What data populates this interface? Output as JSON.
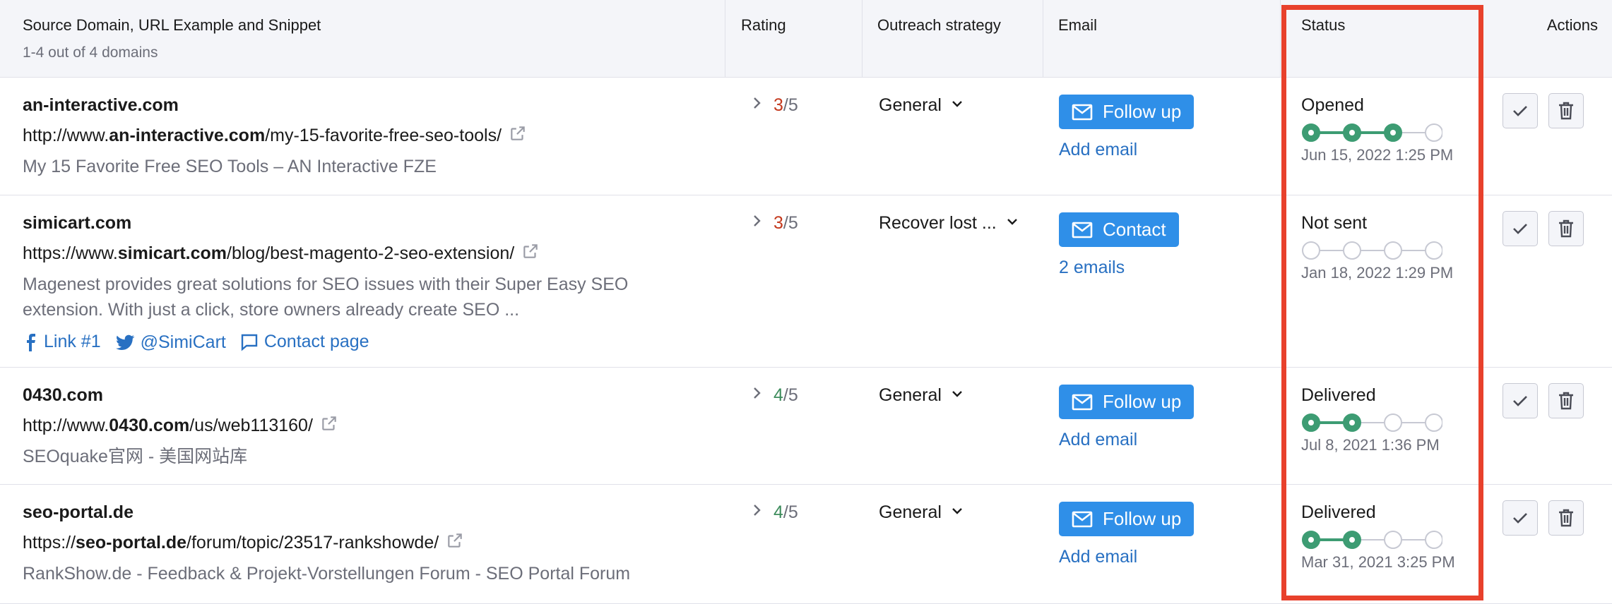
{
  "header": {
    "columns": [
      "Source Domain, URL Example and Snippet",
      "Rating",
      "Outreach strategy",
      "Email",
      "Status",
      "Actions"
    ],
    "subtitle": "1-4 out of 4 domains"
  },
  "rows": [
    {
      "domain": "an-interactive.com",
      "url_prefix": "http://www.",
      "url_domain": "an-interactive.com",
      "url_path": "/my-15-favorite-free-seo-tools/",
      "snippet": "My 15 Favorite Free SEO Tools – AN Interactive FZE",
      "rating": 3,
      "rating_max": 5,
      "rating_color": "#c4391d",
      "strategy": "General",
      "email_button": "Follow up",
      "email_link": "Add email",
      "status": "Opened",
      "progress": 3,
      "date": "Jun 15, 2022 1:25 PM"
    },
    {
      "domain": "simicart.com",
      "url_prefix": "https://www.",
      "url_domain": "simicart.com",
      "url_path": "/blog/best-magento-2-seo-extension/",
      "snippet": "Magenest provides great solutions for SEO issues with their Super Easy SEO extension. With just a click, store owners already create SEO ...",
      "links": {
        "facebook": "Link #1",
        "twitter": "@SimiCart",
        "contact": "Contact page"
      },
      "rating": 3,
      "rating_max": 5,
      "rating_color": "#c4391d",
      "strategy": "Recover lost ...",
      "email_button": "Contact",
      "email_link": "2 emails",
      "status": "Not sent",
      "progress": 0,
      "date": "Jan 18, 2022 1:29 PM"
    },
    {
      "domain": "0430.com",
      "url_prefix": "http://www.",
      "url_domain": "0430.com",
      "url_path": "/us/web113160/",
      "snippet": "SEOquake官网 - 美国网站库",
      "rating": 4,
      "rating_max": 5,
      "rating_color": "#3d8c5c",
      "strategy": "General",
      "email_button": "Follow up",
      "email_link": "Add email",
      "status": "Delivered",
      "progress": 2,
      "date": "Jul 8, 2021 1:36 PM"
    },
    {
      "domain": "seo-portal.de",
      "url_prefix": "https://",
      "url_domain": "seo-portal.de",
      "url_path": "/forum/topic/23517-rankshowde/",
      "snippet": "RankShow.de - Feedback & Projekt-Vorstellungen Forum - SEO Portal Forum",
      "rating": 4,
      "rating_max": 5,
      "rating_color": "#3d8c5c",
      "strategy": "General",
      "email_button": "Follow up",
      "email_link": "Add email",
      "status": "Delivered",
      "progress": 2,
      "date": "Mar 31, 2021 3:25 PM"
    }
  ]
}
